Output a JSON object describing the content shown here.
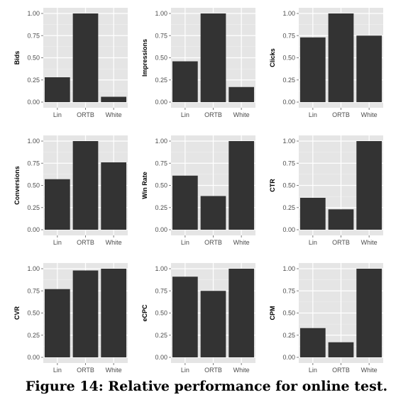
{
  "caption": "Figure 14: Relative performance for online test.",
  "colors": {
    "panel_bg": "#e5e5e5",
    "grid": "#ffffff",
    "bar": "#333333",
    "tick_text": "#4d4d4d"
  },
  "chart_data": [
    {
      "type": "bar",
      "ylabel": "Bids",
      "categories": [
        "Lin",
        "ORTB",
        "White"
      ],
      "values": [
        0.28,
        1.0,
        0.06
      ],
      "ylim": [
        0,
        1
      ],
      "yticks": [
        "0.00",
        "0.25",
        "0.50",
        "0.75",
        "1.00"
      ],
      "grid": true
    },
    {
      "type": "bar",
      "ylabel": "Impressions",
      "categories": [
        "Lin",
        "ORTB",
        "White"
      ],
      "values": [
        0.46,
        1.0,
        0.17
      ],
      "ylim": [
        0,
        1
      ],
      "yticks": [
        "0.00",
        "0.25",
        "0.50",
        "0.75",
        "1.00"
      ],
      "grid": true
    },
    {
      "type": "bar",
      "ylabel": "Clicks",
      "categories": [
        "Lin",
        "ORTB",
        "White"
      ],
      "values": [
        0.73,
        1.0,
        0.75
      ],
      "ylim": [
        0,
        1
      ],
      "yticks": [
        "0.00",
        "0.25",
        "0.50",
        "0.75",
        "1.00"
      ],
      "grid": true
    },
    {
      "type": "bar",
      "ylabel": "Conversions",
      "categories": [
        "Lin",
        "ORTB",
        "White"
      ],
      "values": [
        0.57,
        1.0,
        0.76
      ],
      "ylim": [
        0,
        1
      ],
      "yticks": [
        "0.00",
        "0.25",
        "0.50",
        "0.75",
        "1.00"
      ],
      "grid": true
    },
    {
      "type": "bar",
      "ylabel": "Win Rate",
      "categories": [
        "Lin",
        "ORTB",
        "White"
      ],
      "values": [
        0.61,
        0.38,
        1.0
      ],
      "ylim": [
        0,
        1
      ],
      "yticks": [
        "0.00",
        "0.25",
        "0.50",
        "0.75",
        "1.00"
      ],
      "grid": true
    },
    {
      "type": "bar",
      "ylabel": "CTR",
      "categories": [
        "Lin",
        "ORTB",
        "White"
      ],
      "values": [
        0.36,
        0.23,
        1.0
      ],
      "ylim": [
        0,
        1
      ],
      "yticks": [
        "0.00",
        "0.25",
        "0.50",
        "0.75",
        "1.00"
      ],
      "grid": true
    },
    {
      "type": "bar",
      "ylabel": "CVR",
      "categories": [
        "Lin",
        "ORTB",
        "White"
      ],
      "values": [
        0.77,
        0.98,
        1.0
      ],
      "ylim": [
        0,
        1
      ],
      "yticks": [
        "0.00",
        "0.25",
        "0.50",
        "0.75",
        "1.00"
      ],
      "grid": true
    },
    {
      "type": "bar",
      "ylabel": "eCPC",
      "categories": [
        "Lin",
        "ORTB",
        "White"
      ],
      "values": [
        0.91,
        0.75,
        1.0
      ],
      "ylim": [
        0,
        1
      ],
      "yticks": [
        "0.00",
        "0.25",
        "0.50",
        "0.75",
        "1.00"
      ],
      "grid": true
    },
    {
      "type": "bar",
      "ylabel": "CPM",
      "categories": [
        "Lin",
        "ORTB",
        "White"
      ],
      "values": [
        0.33,
        0.17,
        1.0
      ],
      "ylim": [
        0,
        1
      ],
      "yticks": [
        "0.00",
        "0.25",
        "0.50",
        "0.75",
        "1.00"
      ],
      "grid": true
    }
  ]
}
